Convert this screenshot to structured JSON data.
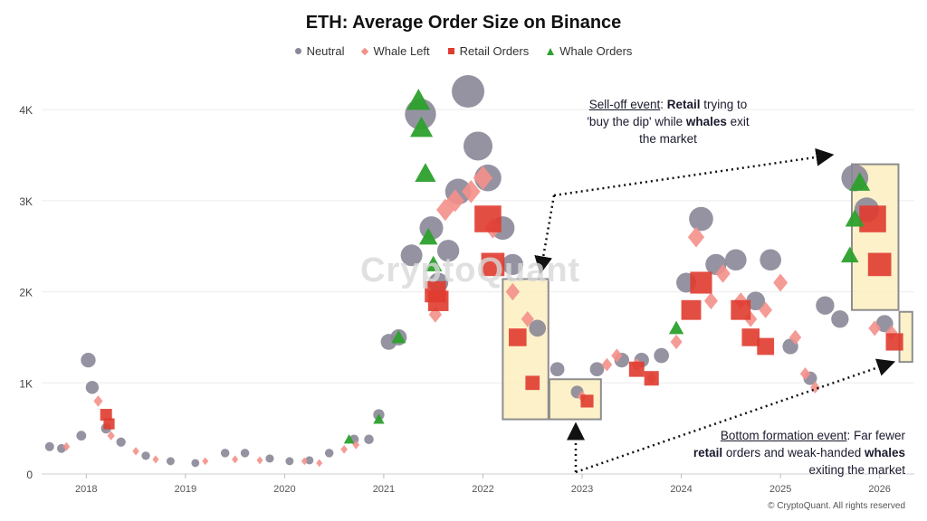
{
  "chart_data": {
    "type": "scatter",
    "title": "ETH: Average Order Size on Binance",
    "xlabel": "",
    "ylabel": "",
    "ylim": [
      0,
      4250
    ],
    "xlim": [
      2017.55,
      2026.35
    ],
    "y_ticks": [
      {
        "value": 0,
        "label": "0"
      },
      {
        "value": 1000,
        "label": "1K"
      },
      {
        "value": 2000,
        "label": "2K"
      },
      {
        "value": 3000,
        "label": "3K"
      },
      {
        "value": 4000,
        "label": "4K"
      }
    ],
    "x_ticks": [
      "2018",
      "2019",
      "2020",
      "2021",
      "2022",
      "2023",
      "2024",
      "2025",
      "2026"
    ],
    "grid": "horizontal",
    "legend_position": "top",
    "series": [
      {
        "name": "Neutral",
        "marker": "circle",
        "color": "#8a8797",
        "points": [
          [
            2017.63,
            300
          ],
          [
            2017.75,
            280
          ],
          [
            2017.95,
            420
          ],
          [
            2018.02,
            1250
          ],
          [
            2018.06,
            950
          ],
          [
            2018.2,
            500
          ],
          [
            2018.35,
            350
          ],
          [
            2018.6,
            200
          ],
          [
            2018.85,
            140
          ],
          [
            2019.1,
            120
          ],
          [
            2019.4,
            230
          ],
          [
            2019.6,
            230
          ],
          [
            2019.85,
            170
          ],
          [
            2020.05,
            140
          ],
          [
            2020.25,
            150
          ],
          [
            2020.45,
            230
          ],
          [
            2020.7,
            380
          ],
          [
            2020.85,
            380
          ],
          [
            2020.95,
            650
          ],
          [
            2021.05,
            1450
          ],
          [
            2021.15,
            1500
          ],
          [
            2021.28,
            2400
          ],
          [
            2021.37,
            3950
          ],
          [
            2021.48,
            2700
          ],
          [
            2021.55,
            2100
          ],
          [
            2021.65,
            2450
          ],
          [
            2021.75,
            3100
          ],
          [
            2021.85,
            4200
          ],
          [
            2021.95,
            3600
          ],
          [
            2022.05,
            3250
          ],
          [
            2022.2,
            2700
          ],
          [
            2022.3,
            2300
          ],
          [
            2022.55,
            1600
          ],
          [
            2022.75,
            1150
          ],
          [
            2022.95,
            900
          ],
          [
            2023.15,
            1150
          ],
          [
            2023.4,
            1250
          ],
          [
            2023.6,
            1250
          ],
          [
            2023.8,
            1300
          ],
          [
            2024.05,
            2100
          ],
          [
            2024.2,
            2800
          ],
          [
            2024.35,
            2300
          ],
          [
            2024.55,
            2350
          ],
          [
            2024.75,
            1900
          ],
          [
            2024.9,
            2350
          ],
          [
            2025.1,
            1400
          ],
          [
            2025.3,
            1050
          ],
          [
            2025.45,
            1850
          ],
          [
            2025.6,
            1700
          ],
          [
            2025.75,
            3250
          ],
          [
            2025.87,
            2900
          ],
          [
            2026.05,
            1650
          ]
        ]
      },
      {
        "name": "Whale Left",
        "marker": "diamond",
        "color": "#f4908a",
        "points": [
          [
            2017.8,
            300
          ],
          [
            2018.12,
            800
          ],
          [
            2018.25,
            420
          ],
          [
            2018.5,
            250
          ],
          [
            2018.7,
            160
          ],
          [
            2019.2,
            140
          ],
          [
            2019.5,
            160
          ],
          [
            2019.75,
            150
          ],
          [
            2020.2,
            140
          ],
          [
            2020.35,
            120
          ],
          [
            2020.6,
            270
          ],
          [
            2020.72,
            320
          ],
          [
            2021.52,
            1750
          ],
          [
            2021.62,
            2900
          ],
          [
            2021.72,
            3000
          ],
          [
            2021.88,
            3100
          ],
          [
            2022.0,
            3250
          ],
          [
            2022.1,
            2700
          ],
          [
            2022.3,
            2000
          ],
          [
            2022.45,
            1700
          ],
          [
            2023.0,
            850
          ],
          [
            2023.25,
            1200
          ],
          [
            2023.35,
            1300
          ],
          [
            2023.55,
            1200
          ],
          [
            2023.7,
            1050
          ],
          [
            2023.95,
            1450
          ],
          [
            2024.15,
            2600
          ],
          [
            2024.3,
            1900
          ],
          [
            2024.42,
            2200
          ],
          [
            2024.6,
            1900
          ],
          [
            2024.7,
            1700
          ],
          [
            2024.85,
            1800
          ],
          [
            2025.0,
            2100
          ],
          [
            2025.15,
            1500
          ],
          [
            2025.25,
            1100
          ],
          [
            2025.35,
            950
          ],
          [
            2025.95,
            1600
          ],
          [
            2026.12,
            1550
          ]
        ]
      },
      {
        "name": "Retail Orders",
        "marker": "square",
        "color": "#e03b2f",
        "points": [
          [
            2018.2,
            650
          ],
          [
            2018.23,
            550
          ],
          [
            2021.52,
            2000
          ],
          [
            2021.55,
            1900
          ],
          [
            2022.05,
            2800
          ],
          [
            2022.1,
            2300
          ],
          [
            2022.35,
            1500
          ],
          [
            2022.5,
            1000
          ],
          [
            2023.05,
            800
          ],
          [
            2023.55,
            1150
          ],
          [
            2023.7,
            1050
          ],
          [
            2024.1,
            1800
          ],
          [
            2024.2,
            2100
          ],
          [
            2024.6,
            1800
          ],
          [
            2024.7,
            1500
          ],
          [
            2024.85,
            1400
          ],
          [
            2025.93,
            2800
          ],
          [
            2026.0,
            2300
          ],
          [
            2026.15,
            1450
          ]
        ]
      },
      {
        "name": "Whale Orders",
        "marker": "triangle",
        "color": "#2ca02c",
        "points": [
          [
            2020.65,
            380
          ],
          [
            2020.95,
            600
          ],
          [
            2021.15,
            1500
          ],
          [
            2021.35,
            4100
          ],
          [
            2021.38,
            3800
          ],
          [
            2021.42,
            3300
          ],
          [
            2021.45,
            2600
          ],
          [
            2021.5,
            2300
          ],
          [
            2023.95,
            1600
          ],
          [
            2025.7,
            2400
          ],
          [
            2025.75,
            2800
          ],
          [
            2025.8,
            3200
          ]
        ]
      }
    ],
    "annotations": {
      "selloff": {
        "prefix": "Sell-off event",
        "t1": ": ",
        "b1": "Retail",
        "t2": " trying to 'buy the dip' while ",
        "b2": "whales",
        "t3": " exit the market"
      },
      "bottom": {
        "prefix": "Bottom formation  event",
        "t1": ": Far fewer ",
        "b1": "retail",
        "t2": " orders and weak-handed ",
        "b2": "whales",
        "t3": " exiting the market"
      }
    },
    "highlight_color": "#fdefc0"
  },
  "watermark": "CryptoQuant",
  "copyright": "© CryptoQuant. All rights reserved"
}
